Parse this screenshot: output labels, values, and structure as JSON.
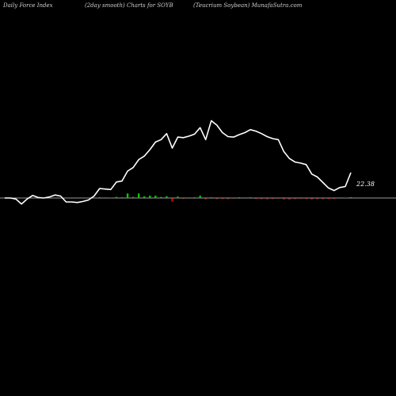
{
  "header": {
    "left": "Daily Force  Index",
    "center": "(2day smooth) Charts for SOYB",
    "right": "(Teucrium Soybean) MunafaSutra.com"
  },
  "colors": {
    "background": "#000000",
    "line": "#ffffff",
    "baseline": "#9a9a9a",
    "positive": "#00cc00",
    "negative": "#cc0000",
    "text": "#cfcfcf"
  },
  "chart_data": {
    "type": "line",
    "grid": false,
    "legend": "none",
    "last_value_label": "22.38",
    "series": [
      {
        "values": [
          0.0,
          0.0,
          -0.2,
          -1.2,
          -0.2,
          0.5,
          0.1,
          0.0,
          0.2,
          0.6,
          0.4,
          -0.8,
          -0.8,
          -0.9,
          -0.7,
          -0.4,
          0.4,
          1.9,
          1.8,
          1.7,
          3.2,
          3.4,
          5.4,
          6.1,
          7.7,
          8.4,
          9.7,
          11.2,
          11.7,
          12.9,
          10.0,
          12.2,
          12.1,
          12.4,
          12.8,
          14.1,
          11.7,
          15.5,
          14.6,
          13.1,
          12.3,
          12.2,
          12.7,
          13.1,
          13.7,
          13.4,
          12.9,
          12.3,
          11.9,
          11.7,
          9.3,
          7.9,
          7.2,
          7.0,
          6.7,
          4.8,
          4.2,
          3.1,
          2.0,
          1.5,
          2.1,
          2.3,
          5.1
        ]
      }
    ],
    "bars": [
      0,
      0,
      0,
      0,
      0,
      0,
      0,
      0,
      0,
      0,
      0,
      0,
      0,
      0,
      0,
      0,
      0,
      0.4,
      0.3,
      0.2,
      0.6,
      0.4,
      2.6,
      0.6,
      2.6,
      0.9,
      1.3,
      1.3,
      0.6,
      1.0,
      -1.9,
      0.8,
      -0.2,
      0.3,
      0.4,
      1.3,
      -0.5,
      0.4,
      -0.4,
      -0.3,
      -0.4,
      -0.1,
      0.4,
      0.3,
      0.4,
      -0.3,
      -0.4,
      -0.5,
      -0.3,
      -0.1,
      -0.6,
      -0.7,
      -0.4,
      -0.2,
      -0.3,
      -0.6,
      -0.4,
      -0.4,
      -0.3,
      -0.3,
      0.3,
      0.2,
      0.5
    ]
  }
}
